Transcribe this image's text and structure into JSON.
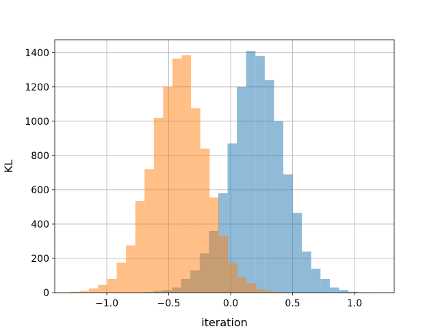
{
  "chart_data": {
    "type": "histogram",
    "title": "",
    "xlabel": "iteration",
    "ylabel": "KL",
    "xlim": [
      -1.42,
      1.32
    ],
    "ylim": [
      0,
      1475
    ],
    "grid": true,
    "xticks": [
      -1.0,
      -0.5,
      0.0,
      0.5,
      1.0
    ],
    "xtick_labels": [
      "−1.0",
      "−0.5",
      "0.0",
      "0.5",
      "1.0"
    ],
    "yticks": [
      0,
      200,
      400,
      600,
      800,
      1000,
      1200,
      1400
    ],
    "ytick_labels": [
      "0",
      "200",
      "400",
      "600",
      "800",
      "1000",
      "1200",
      "1400"
    ],
    "series": [
      {
        "color": "#1f77b4",
        "opacity": 0.5,
        "bin_edges": [
          -0.7,
          -0.625,
          -0.55,
          -0.475,
          -0.4,
          -0.325,
          -0.25,
          -0.175,
          -0.1,
          -0.025,
          0.05,
          0.125,
          0.2,
          0.275,
          0.35,
          0.425,
          0.5,
          0.575,
          0.65,
          0.725,
          0.8,
          0.875,
          0.95,
          1.025,
          1.1,
          1.175
        ],
        "counts": [
          3,
          10,
          15,
          30,
          80,
          130,
          230,
          360,
          580,
          870,
          1200,
          1410,
          1380,
          1240,
          1000,
          690,
          465,
          240,
          140,
          80,
          30,
          15,
          5,
          2,
          1
        ]
      },
      {
        "color": "#ff7f0e",
        "opacity": 0.5,
        "bin_edges": [
          -1.37,
          -1.295,
          -1.22,
          -1.145,
          -1.07,
          -0.995,
          -0.92,
          -0.845,
          -0.77,
          -0.695,
          -0.62,
          -0.545,
          -0.47,
          -0.395,
          -0.32,
          -0.245,
          -0.17,
          -0.095,
          -0.02,
          0.055,
          0.13,
          0.205,
          0.28,
          0.355,
          0.43,
          0.505
        ],
        "counts": [
          2,
          5,
          10,
          25,
          45,
          80,
          175,
          275,
          535,
          720,
          1020,
          1200,
          1365,
          1385,
          1075,
          840,
          555,
          330,
          175,
          90,
          55,
          20,
          10,
          5,
          2
        ]
      }
    ]
  }
}
